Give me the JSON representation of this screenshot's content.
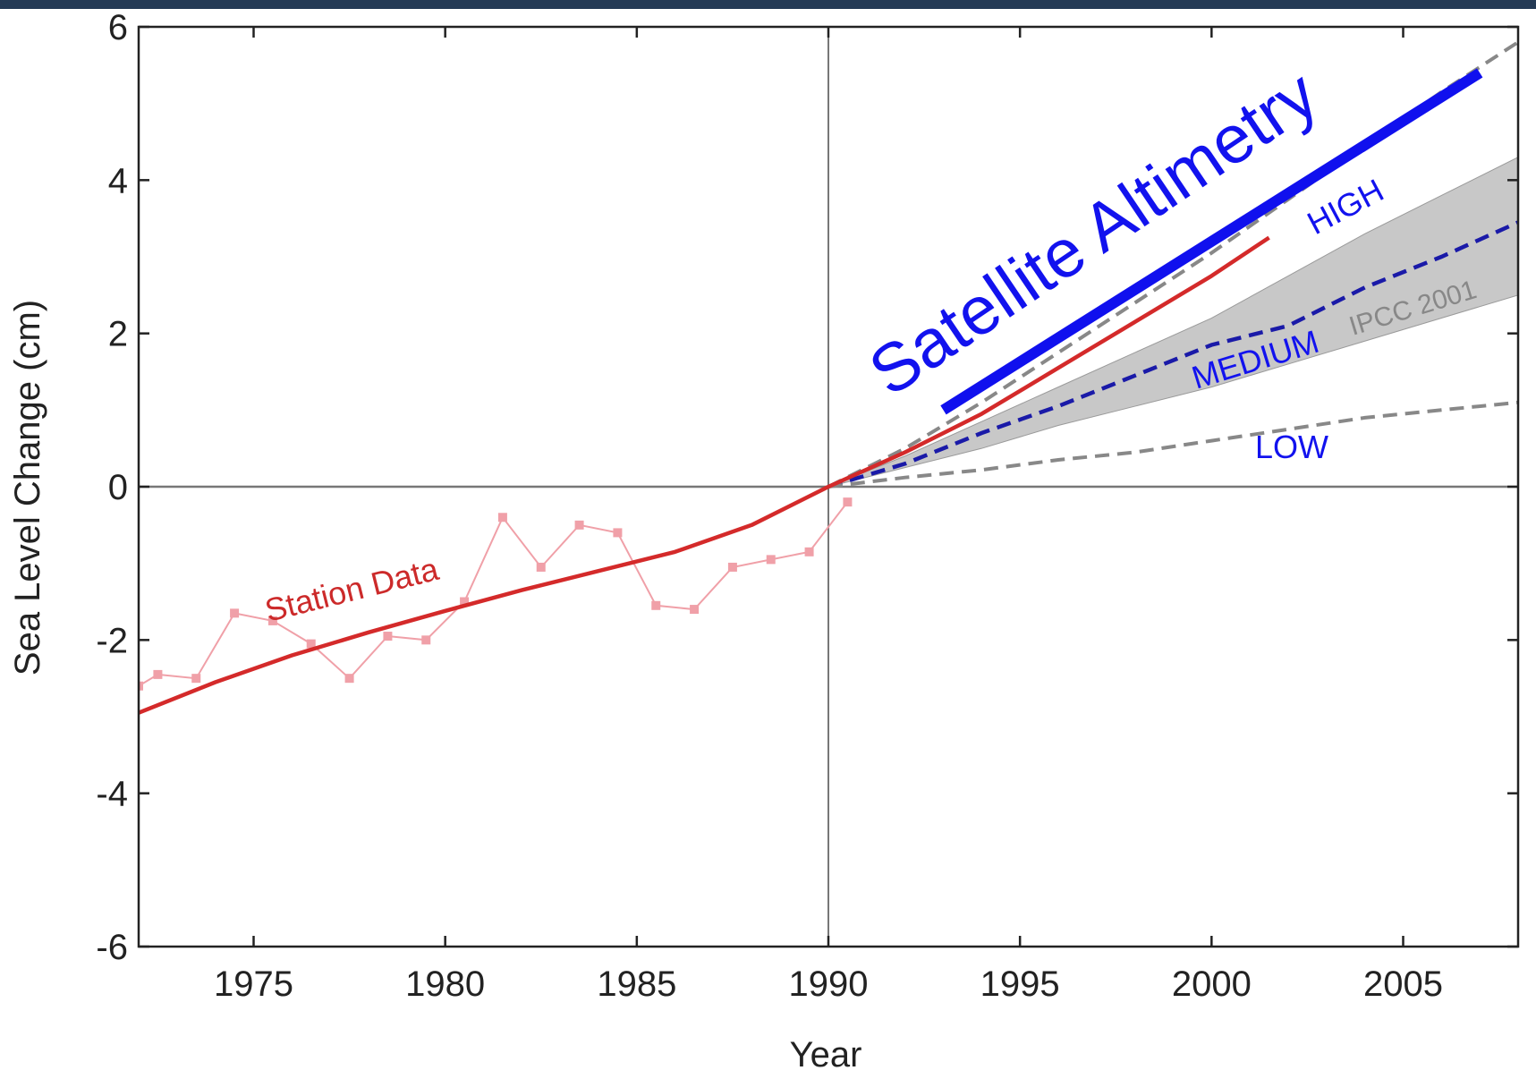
{
  "chart_data": {
    "type": "line",
    "title": "",
    "xlabel": "Year",
    "ylabel": "Sea Level Change (cm)",
    "xlim": [
      1972,
      2008
    ],
    "ylim": [
      -6,
      6
    ],
    "x_ticks": [
      1975,
      1980,
      1985,
      1990,
      1995,
      2000,
      2005
    ],
    "y_ticks": [
      -6,
      -4,
      -2,
      0,
      2,
      4,
      6
    ],
    "reference_lines": {
      "x": 1990,
      "y": 0
    },
    "grid": false,
    "legend": "none",
    "ipcc_band": {
      "label": "IPCC 2001",
      "x": [
        1990,
        1992,
        1994,
        1996,
        1998,
        2000,
        2002,
        2004,
        2006,
        2008
      ],
      "lower": [
        0,
        0.25,
        0.5,
        0.8,
        1.05,
        1.3,
        1.6,
        1.9,
        2.2,
        2.5
      ],
      "upper": [
        0,
        0.4,
        0.85,
        1.3,
        1.75,
        2.2,
        2.75,
        3.3,
        3.8,
        4.3
      ]
    },
    "station_raw": {
      "x": [
        1972,
        1972.5,
        1973.5,
        1974.5,
        1975.5,
        1976.5,
        1977.5,
        1978.5,
        1979.5,
        1980.5,
        1981.5,
        1982.5,
        1983.5,
        1984.5,
        1985.5,
        1986.5,
        1987.5,
        1988.5,
        1989.5,
        1990.5
      ],
      "y": [
        -2.6,
        -2.45,
        -2.5,
        -1.65,
        -1.75,
        -2.05,
        -2.5,
        -1.95,
        -2.0,
        -1.5,
        -0.4,
        -1.05,
        -0.5,
        -0.6,
        -1.55,
        -1.6,
        -1.05,
        -0.95,
        -0.85,
        -0.2
      ]
    },
    "station_trend": {
      "label": "Station Data",
      "x": [
        1972,
        1974,
        1976,
        1978,
        1980,
        1982,
        1984,
        1986,
        1988,
        1990,
        1992,
        1994,
        1996,
        1998,
        2000,
        2001.5
      ],
      "y": [
        -2.95,
        -2.55,
        -2.2,
        -1.9,
        -1.62,
        -1.35,
        -1.1,
        -0.85,
        -0.5,
        0,
        0.45,
        0.95,
        1.55,
        2.15,
        2.75,
        3.25
      ]
    },
    "satellite": {
      "label": "Satellite Altimetry",
      "x": [
        1993,
        2007
      ],
      "y": [
        1.0,
        5.4
      ]
    },
    "scenarios": [
      {
        "label": "HIGH",
        "x": [
          1990,
          1992,
          1994,
          1996,
          1998,
          2000,
          2002,
          2004,
          2006,
          2008
        ],
        "y": [
          0,
          0.5,
          1.1,
          1.75,
          2.4,
          3.05,
          3.75,
          4.45,
          5.15,
          5.8
        ]
      },
      {
        "label": "MEDIUM",
        "x": [
          1990,
          1992,
          1994,
          1996,
          1998,
          2000,
          2002,
          2004,
          2006,
          2008
        ],
        "y": [
          0,
          0.3,
          0.7,
          1.05,
          1.45,
          1.85,
          2.1,
          2.6,
          3.0,
          3.45
        ]
      },
      {
        "label": "LOW",
        "x": [
          1990,
          1992,
          1994,
          1996,
          1998,
          2000,
          2002,
          2004,
          2006,
          2008
        ],
        "y": [
          0,
          0.12,
          0.22,
          0.35,
          0.45,
          0.6,
          0.75,
          0.9,
          1.0,
          1.1
        ]
      }
    ],
    "colors": {
      "station_raw": "#f0a0a8",
      "station_trend": "#d42a2a",
      "satellite": "#1010ee",
      "scenario_high": "#888888",
      "scenario_medium": "#1a1aa8",
      "scenario_low": "#888888",
      "band": "#c8c8c8",
      "label_blue": "#1212ee",
      "label_gray": "#888888",
      "station_label": "#cc2a2a",
      "reference": "#777777",
      "axis": "#222222",
      "top_bar": "#243a55"
    }
  }
}
